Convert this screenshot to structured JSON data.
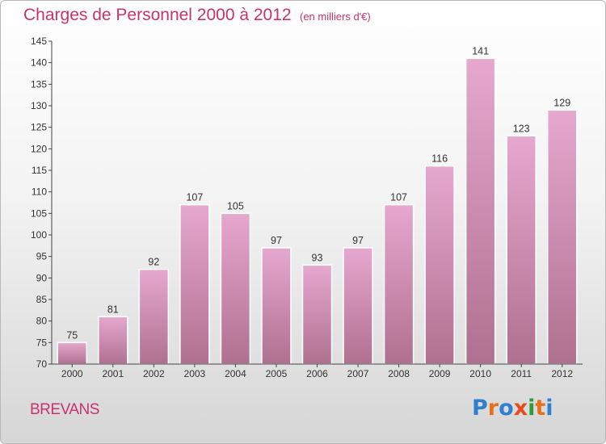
{
  "header": {
    "title": "Charges de Personnel 2000 à 2012",
    "subtitle": "(en milliers d'€)"
  },
  "footer": {
    "commune": "BREVANS",
    "logo_text": "Proxiti",
    "logo_colors": [
      "#2f7fd1",
      "#e8701c",
      "#2f7fd1",
      "#e84b1c",
      "#2f9b3a",
      "#e8701c",
      "#2f7fd1"
    ]
  },
  "colors": {
    "bar_fill_top": "#e6a8cf",
    "bar_fill_bottom": "#b0708f",
    "bar_stroke": "#ffffff",
    "axis": "#444444",
    "grid": "#cfcfcf",
    "title": "#c8326e"
  },
  "chart_data": {
    "type": "bar",
    "categories": [
      "2000",
      "2001",
      "2002",
      "2003",
      "2004",
      "2005",
      "2006",
      "2007",
      "2008",
      "2009",
      "2010",
      "2011",
      "2012"
    ],
    "values": [
      75,
      81,
      92,
      107,
      105,
      97,
      93,
      97,
      107,
      116,
      141,
      123,
      129
    ],
    "title": "Charges de Personnel 2000 à 2012",
    "unit": "(en milliers d'€)",
    "ylim": [
      70,
      145
    ],
    "yticks": [
      70,
      75,
      80,
      85,
      90,
      95,
      100,
      105,
      110,
      115,
      120,
      125,
      130,
      135,
      140,
      145
    ],
    "data_labels": true,
    "grid": false
  }
}
